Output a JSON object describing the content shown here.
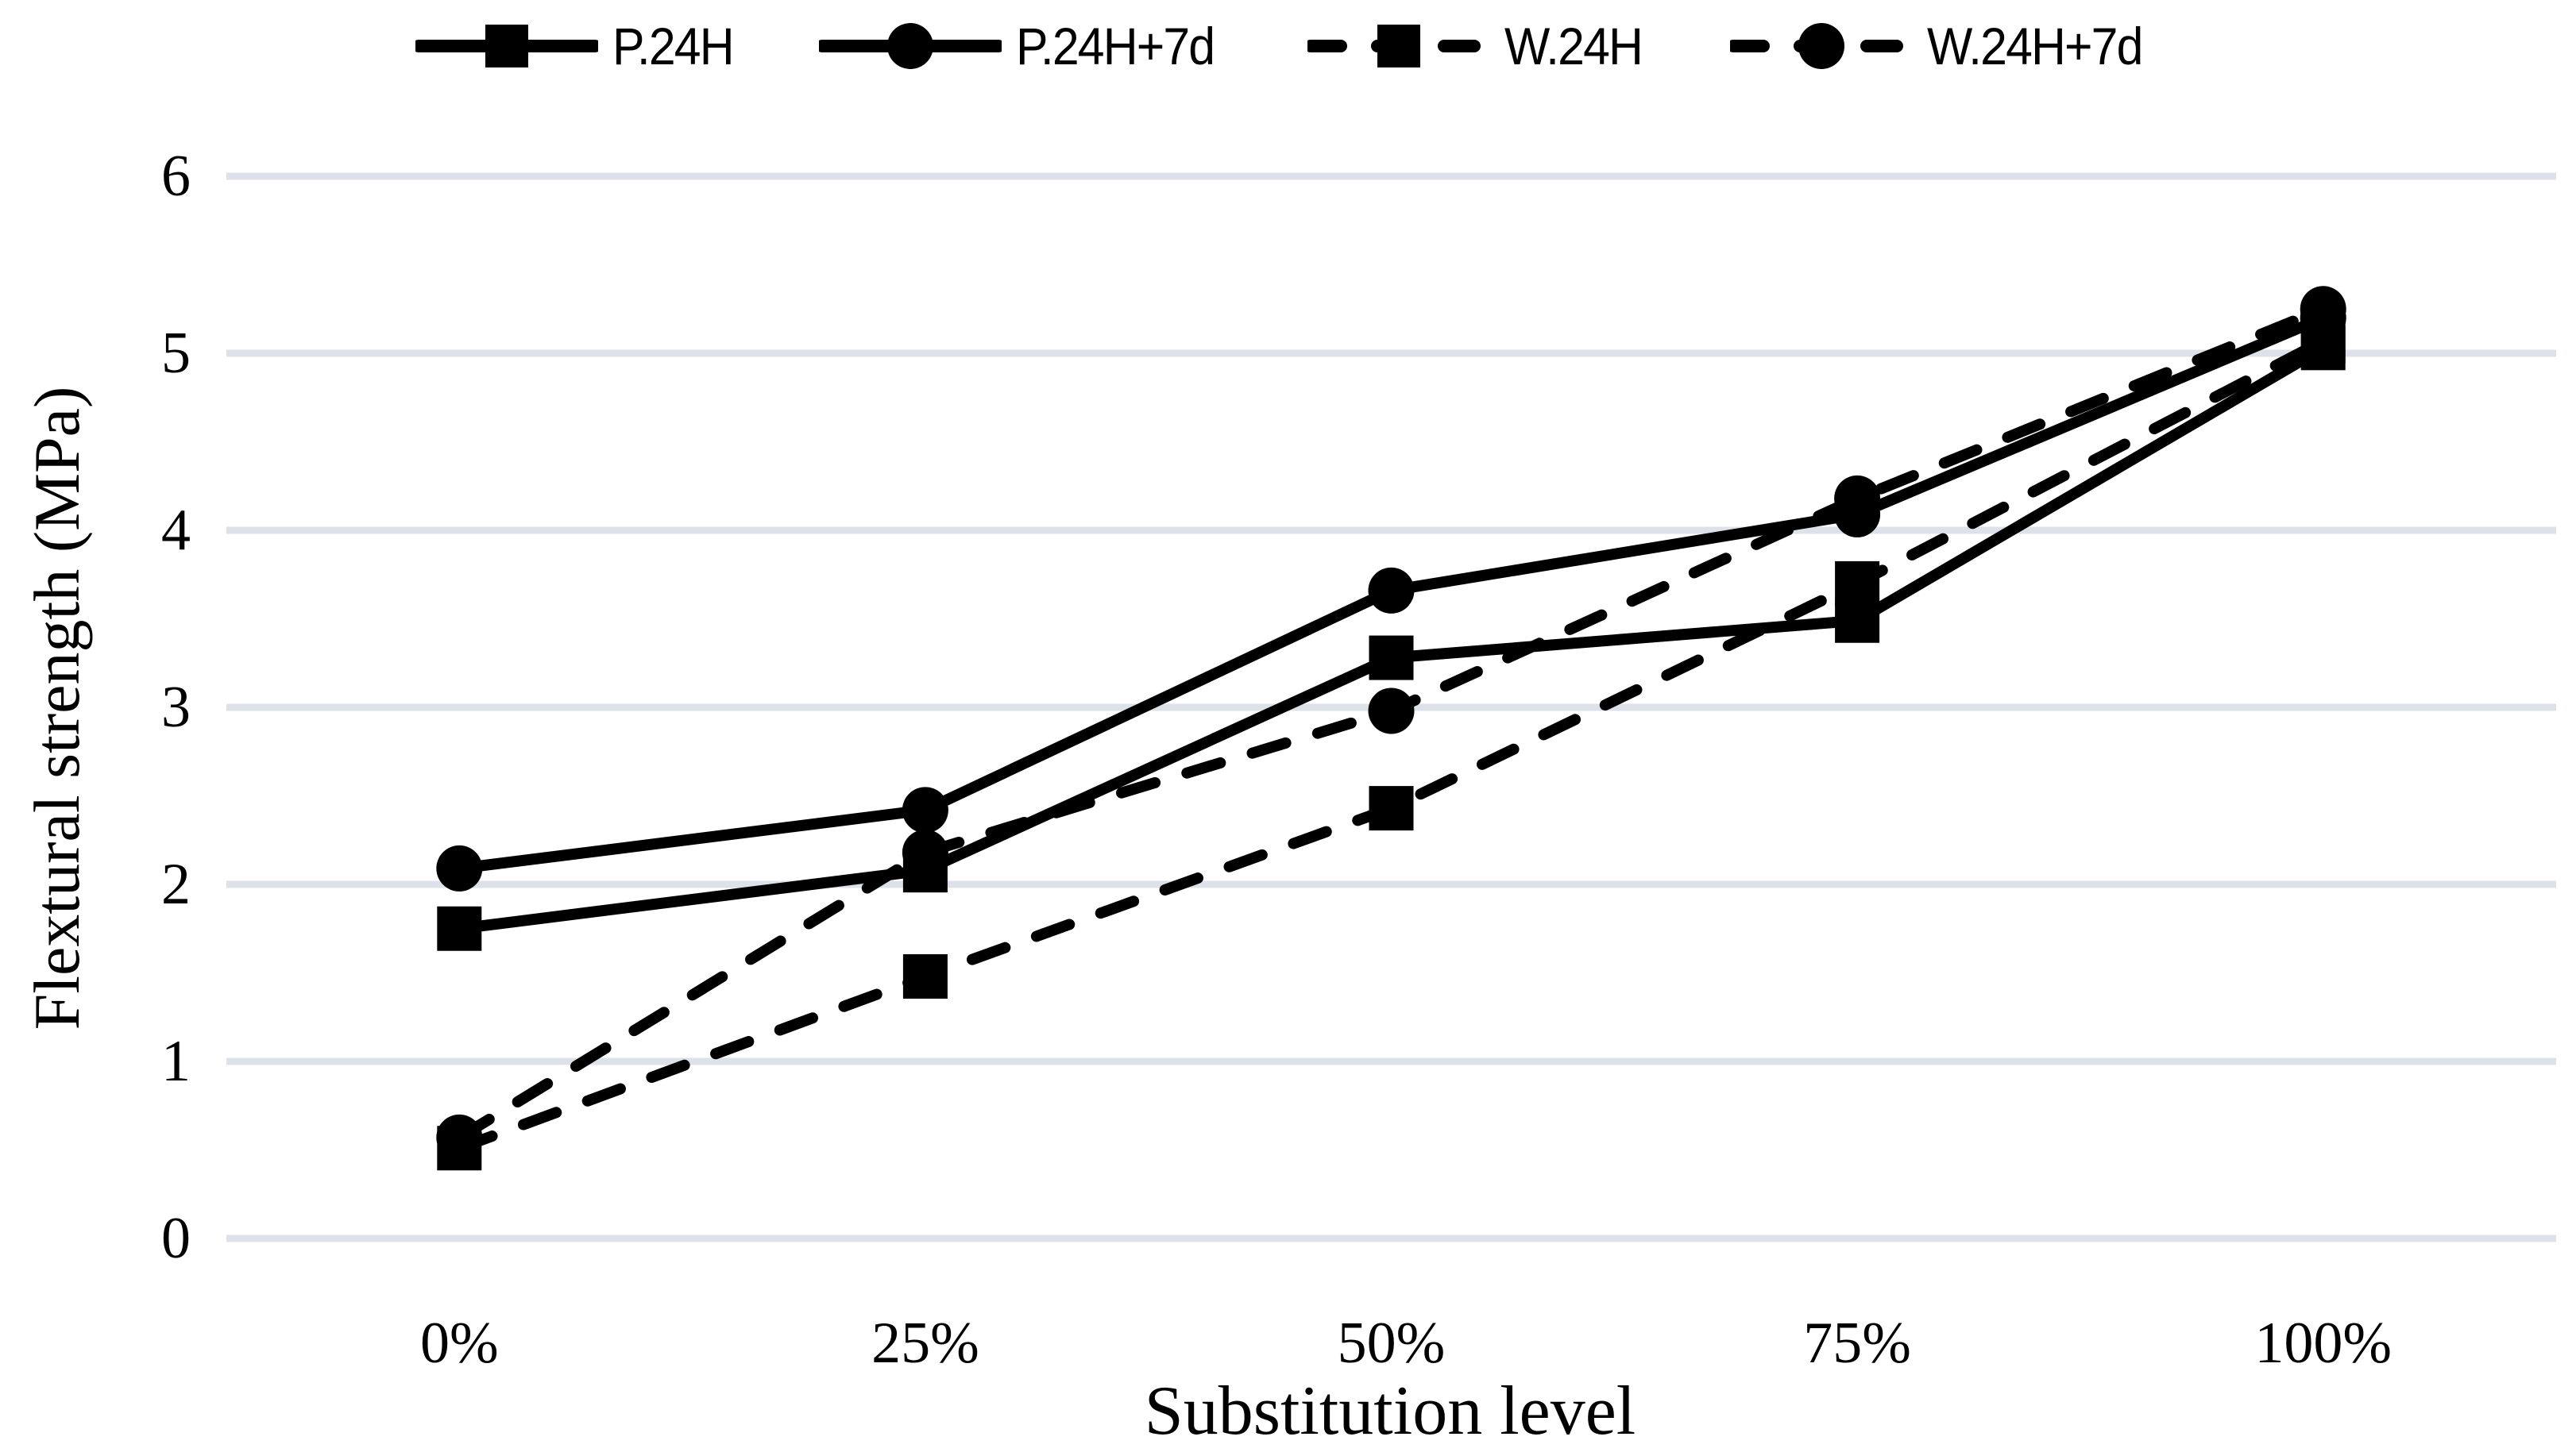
{
  "chart_data": {
    "type": "line",
    "title": "",
    "xlabel": "Substitution level",
    "ylabel": "Flextural strength (MPa)",
    "categories": [
      "0%",
      "25%",
      "50%",
      "75%",
      "100%"
    ],
    "ylim": [
      0,
      6
    ],
    "yticks": [
      0,
      1,
      2,
      3,
      4,
      5,
      6
    ],
    "grid": "horizontal",
    "legend_position": "top-center",
    "series": [
      {
        "name": "P.24H",
        "line": "solid",
        "marker": "square",
        "values": [
          1.75,
          2.08,
          3.28,
          3.49,
          5.03
        ]
      },
      {
        "name": "P.24H+7d",
        "line": "solid",
        "marker": "circle",
        "values": [
          2.09,
          2.42,
          3.66,
          4.09,
          5.2
        ]
      },
      {
        "name": "W.24H",
        "line": "dashed",
        "marker": "square",
        "values": [
          0.51,
          1.48,
          2.43,
          3.7,
          5.07
        ]
      },
      {
        "name": "W.24H+7d",
        "line": "dashed",
        "marker": "circle",
        "values": [
          0.57,
          2.18,
          2.98,
          4.18,
          5.25
        ]
      }
    ],
    "colors": {
      "series": "#000000",
      "gridline": "#dde2ea",
      "background": "#ffffff"
    }
  }
}
